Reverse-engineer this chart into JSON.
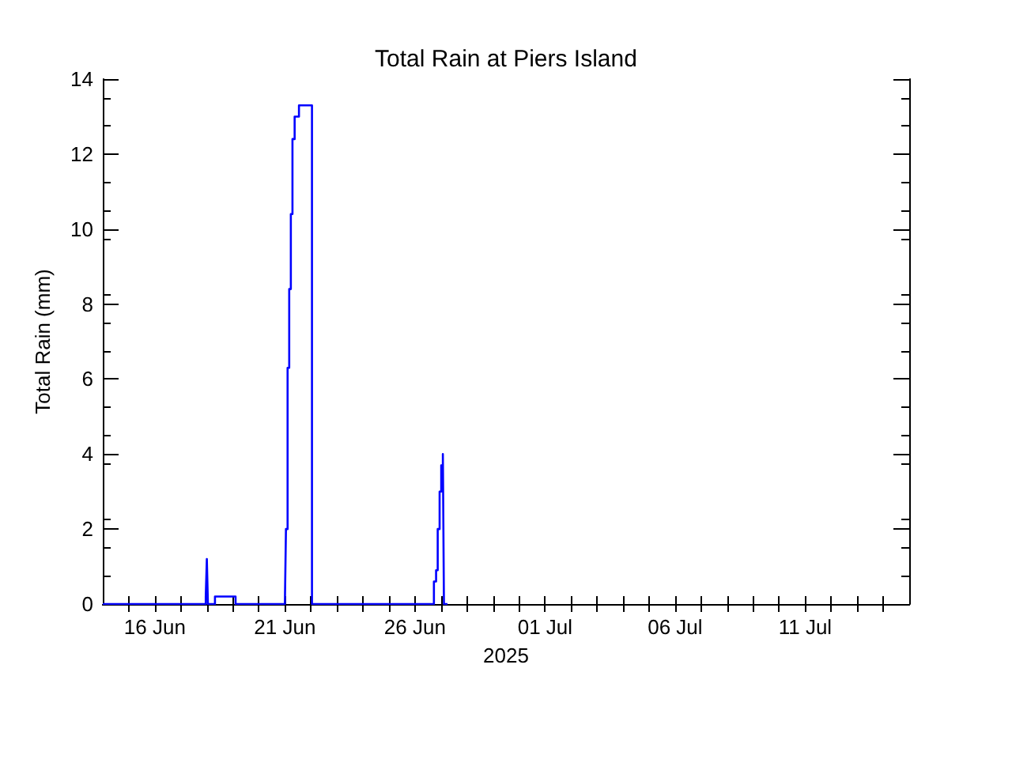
{
  "chart_data": {
    "type": "step",
    "title": "Total Rain at Piers Island",
    "xlabel": "2025",
    "ylabel": "Total Rain (mm)",
    "x": [
      "2025-06-14T00:00",
      "2025-06-17T23:00",
      "2025-06-18T00:00",
      "2025-06-18T01:00",
      "2025-06-18T07:30",
      "2025-06-19T02:30",
      "2025-06-21T00:00",
      "2025-06-21T01:00",
      "2025-06-21T02:30",
      "2025-06-21T04:00",
      "2025-06-21T05:30",
      "2025-06-21T07:00",
      "2025-06-21T09:00",
      "2025-06-21T13:00",
      "2025-06-22T01:00",
      "2025-06-26T17:30",
      "2025-06-26T19:30",
      "2025-06-26T21:00",
      "2025-06-26T22:45",
      "2025-06-27T00:15",
      "2025-06-27T01:45",
      "2025-06-27T02:45",
      "2025-06-27T06:00"
    ],
    "series": [
      {
        "color": "#0000ff",
        "values": [
          0,
          0.2,
          1.2,
          0,
          0.2,
          0,
          0,
          2.0,
          6.3,
          8.4,
          10.4,
          12.4,
          13.0,
          13.3,
          0,
          0.6,
          0.9,
          2.0,
          3.0,
          3.7,
          4.0,
          0,
          0
        ]
      }
    ],
    "xlim": [
      "2025-06-14",
      "2025-07-15"
    ],
    "xticks": [
      {
        "value": "2025-06-15",
        "label": null
      },
      {
        "value": "2025-06-16",
        "label": "16 Jun"
      },
      {
        "value": "2025-06-17",
        "label": null
      },
      {
        "value": "2025-06-18",
        "label": null
      },
      {
        "value": "2025-06-19",
        "label": null
      },
      {
        "value": "2025-06-20",
        "label": null
      },
      {
        "value": "2025-06-21",
        "label": "21 Jun"
      },
      {
        "value": "2025-06-22",
        "label": null
      },
      {
        "value": "2025-06-23",
        "label": null
      },
      {
        "value": "2025-06-24",
        "label": null
      },
      {
        "value": "2025-06-25",
        "label": null
      },
      {
        "value": "2025-06-26",
        "label": "26 Jun"
      },
      {
        "value": "2025-06-27",
        "label": null
      },
      {
        "value": "2025-06-28",
        "label": null
      },
      {
        "value": "2025-06-29",
        "label": null
      },
      {
        "value": "2025-06-30",
        "label": null
      },
      {
        "value": "2025-07-01",
        "label": "01 Jul"
      },
      {
        "value": "2025-07-02",
        "label": null
      },
      {
        "value": "2025-07-03",
        "label": null
      },
      {
        "value": "2025-07-04",
        "label": null
      },
      {
        "value": "2025-07-05",
        "label": null
      },
      {
        "value": "2025-07-06",
        "label": "06 Jul"
      },
      {
        "value": "2025-07-07",
        "label": null
      },
      {
        "value": "2025-07-08",
        "label": null
      },
      {
        "value": "2025-07-09",
        "label": null
      },
      {
        "value": "2025-07-10",
        "label": null
      },
      {
        "value": "2025-07-11",
        "label": "11 Jul"
      },
      {
        "value": "2025-07-12",
        "label": null
      },
      {
        "value": "2025-07-13",
        "label": null
      },
      {
        "value": "2025-07-14",
        "label": null
      }
    ],
    "ylim": [
      0,
      14
    ],
    "yticks": [
      0,
      2,
      4,
      6,
      8,
      10,
      12,
      14
    ],
    "grid": false,
    "marker": "none",
    "line_style": "solid"
  }
}
